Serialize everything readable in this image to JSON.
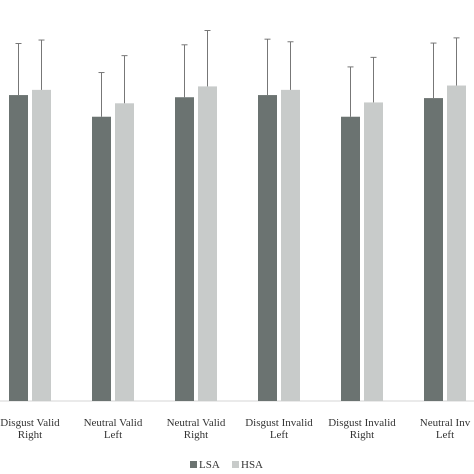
{
  "chart_data": {
    "type": "bar",
    "categories": [
      [
        "Disgust Valid",
        "Right"
      ],
      [
        "Neutral Valid",
        "Left"
      ],
      [
        "Neutral Valid",
        "Right"
      ],
      [
        "Disgust Invalid",
        "Left"
      ],
      [
        "Disgust Invalid",
        "Right"
      ],
      [
        "Neutral Inv",
        "Left"
      ]
    ],
    "series": [
      {
        "name": "LSA",
        "color": "#6b7371",
        "values": [
          70.6,
          65.6,
          70.1,
          70.6,
          65.6,
          69.9
        ],
        "errors": [
          11.9,
          10.2,
          12.1,
          12.9,
          11.5,
          12.7
        ]
      },
      {
        "name": "HSA",
        "color": "#c8cbca",
        "values": [
          71.8,
          68.7,
          72.6,
          71.8,
          68.9,
          72.8
        ],
        "errors": [
          11.5,
          11.0,
          12.9,
          11.1,
          10.4,
          11.0
        ]
      }
    ],
    "ylim": [
      0,
      90
    ],
    "grid": false,
    "legend_position": "bottom"
  }
}
